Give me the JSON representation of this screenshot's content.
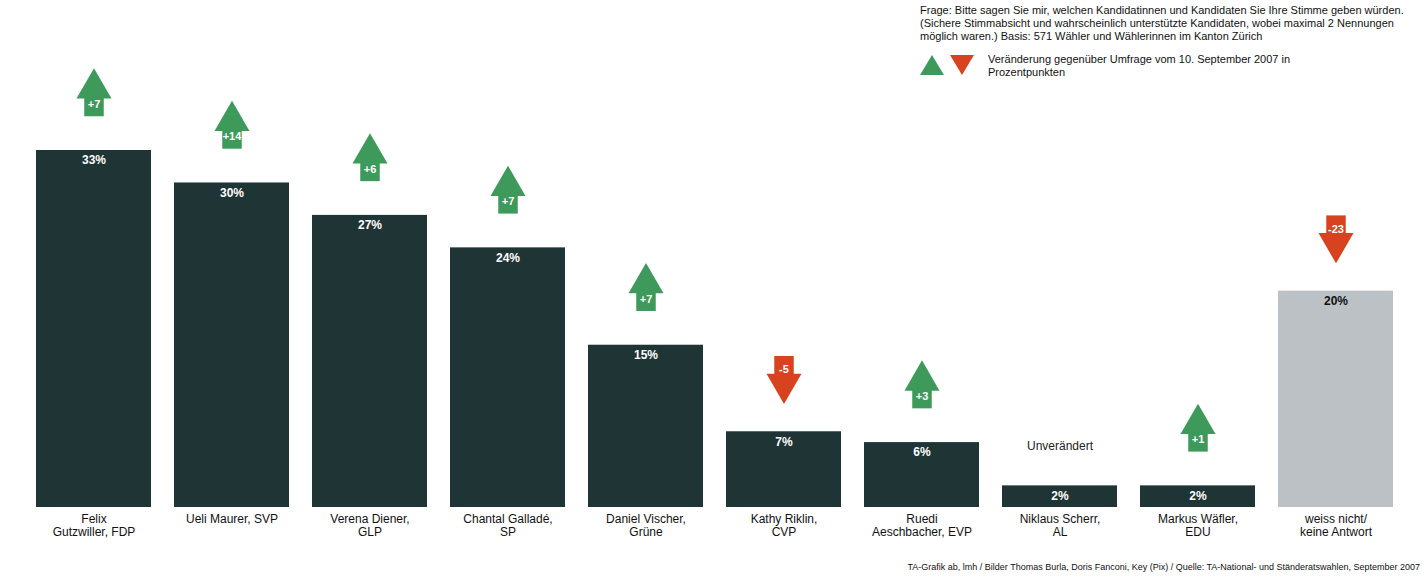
{
  "chart_data": {
    "type": "bar",
    "subtitle": "Frage: Bitte sagen Sie mir, welchen Kandidatinnen und Kandidaten Sie Ihre Stimme geben würden. (Sichere Stimmabsicht und wahrscheinlich unterstützte Kandidaten, wobei maximal 2 Nennungen möglich waren.) Basis: 571 Wähler und Wählerinnen im Kanton Zürich",
    "legend_text": "Veränderung gegenüber Umfrage vom 10. September 2007 in Prozentpunkten",
    "source": "TA-Grafik ab, lmh / Bilder Thomas Burla, Doris Fanconi, Key (Pix) / Quelle: TA-National- und Ständeratswahlen, September 2007",
    "categories": [
      "Felix Gutzwiller, FDP",
      "Ueli Maurer, SVP",
      "Verena Diener, GLP",
      "Chantal Galladé, SP",
      "Daniel Vischer, Grüne",
      "Kathy Riklin, CVP",
      "Ruedi Aeschbacher, EVP",
      "Niklaus Scherr, AL",
      "Markus Wäfler, EDU",
      "weiss nicht/ keine Antwort"
    ],
    "values": [
      33,
      30,
      27,
      24,
      15,
      7,
      6,
      2,
      2,
      20
    ],
    "value_labels": [
      "33%",
      "30%",
      "27%",
      "24%",
      "15%",
      "7%",
      "6%",
      "2%",
      "2%",
      "20%"
    ],
    "changes": [
      7,
      14,
      6,
      7,
      7,
      -5,
      3,
      0,
      1,
      -23
    ],
    "change_labels": [
      "+7",
      "+14",
      "+6",
      "+7",
      "+7",
      "-5",
      "+3",
      "Unverändert",
      "+1",
      "-23"
    ],
    "colors": [
      "#1f3434",
      "#1f3434",
      "#1f3434",
      "#1f3434",
      "#1f3434",
      "#1f3434",
      "#1f3434",
      "#1f3434",
      "#1f3434",
      "#bcc1c5"
    ],
    "ylim": [
      0,
      33
    ],
    "tick_labels": false,
    "data_labels": true,
    "legend": "top-right"
  }
}
